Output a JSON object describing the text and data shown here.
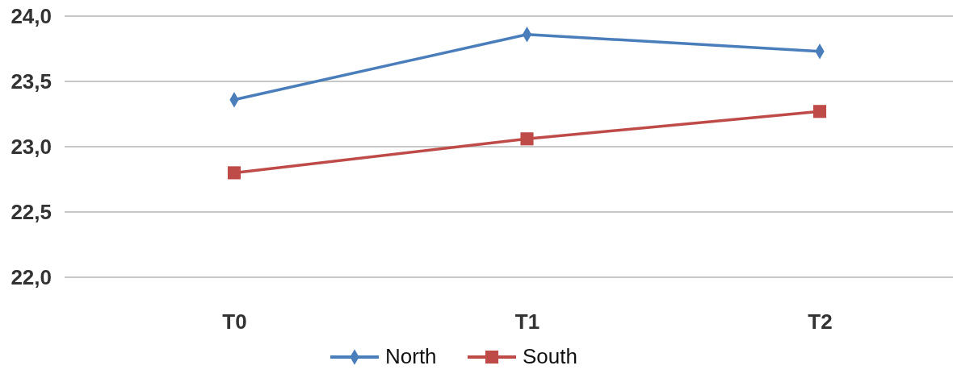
{
  "chart_data": {
    "type": "line",
    "categories": [
      "T0",
      "T1",
      "T2"
    ],
    "series": [
      {
        "name": "North",
        "color": "#4a7ebb",
        "marker": "diamond",
        "values": [
          23.36,
          23.86,
          23.73
        ]
      },
      {
        "name": "South",
        "color": "#be4b48",
        "marker": "square",
        "values": [
          22.8,
          23.06,
          23.27
        ]
      }
    ],
    "ylim": [
      22,
      24
    ],
    "yticks": [
      {
        "value": 22,
        "label": "22,0"
      },
      {
        "value": 22.5,
        "label": "22,5"
      },
      {
        "value": 23,
        "label": "23,0"
      },
      {
        "value": 23.5,
        "label": "23,5"
      },
      {
        "value": 24,
        "label": "24,0"
      }
    ],
    "grid": "y",
    "legend": "bottom"
  }
}
